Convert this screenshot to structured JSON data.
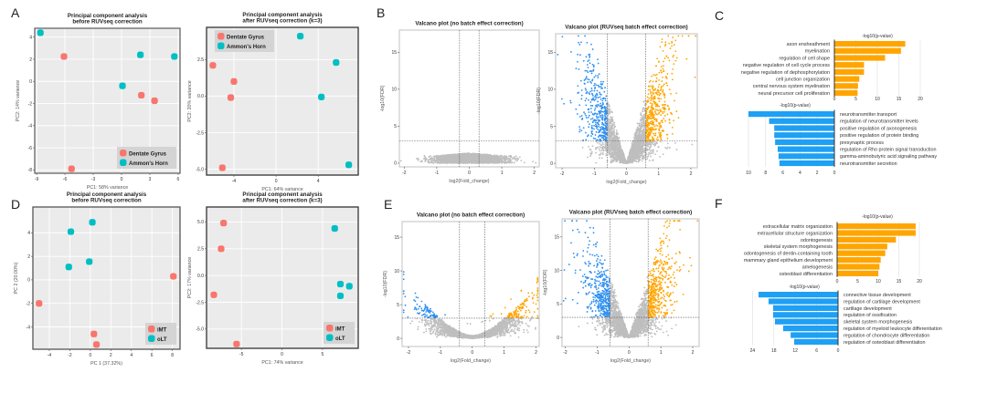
{
  "panel_labels": [
    "A",
    "B",
    "C",
    "D",
    "E",
    "F"
  ],
  "colors": {
    "dentate_gyrus": "#F8766D",
    "ammons_horn": "#00BFC4",
    "down": "#2E8FF0",
    "up": "#FFA500",
    "not_significant": "#BEBEBE",
    "pca_background": "#EBEBEB"
  },
  "chart_data": [
    {
      "type": "scatter",
      "title_lines": [
        "Principal component analysis",
        "before RUVseq correction"
      ],
      "xlabel": "PC1: 58% variance",
      "ylabel": "PC2: 14% variance",
      "xlim": [
        -9.2,
        6.2
      ],
      "ylim": [
        -8.3,
        4.8
      ],
      "xticks": [
        -9,
        -6,
        -3,
        0,
        3,
        6
      ],
      "xtick_labels": [
        "-9",
        "-6",
        "-3",
        "0",
        "3",
        "6"
      ],
      "yticks": [
        4,
        2,
        0,
        -2,
        -4,
        -6,
        -8
      ],
      "ytick_labels": [
        "4",
        "2",
        "0",
        "-2",
        "-4",
        "-6",
        "-8"
      ],
      "grid": true,
      "legend": "bottom-right",
      "series": [
        {
          "name": "Dentate Gyrus",
          "color": "#F8766D",
          "points": [
            [
              -6.1,
              2.25
            ],
            [
              2.1,
              -1.25
            ],
            [
              3.5,
              -1.75
            ],
            [
              -5.3,
              -7.9
            ]
          ]
        },
        {
          "name": "Ammon's Horn",
          "color": "#00BFC4",
          "points": [
            [
              -8.6,
              4.4
            ],
            [
              2.0,
              2.4
            ],
            [
              5.6,
              2.25
            ],
            [
              0.1,
              -0.4
            ]
          ]
        }
      ]
    },
    {
      "type": "scatter",
      "title_lines": [
        "Principal component analysis",
        "after RUVseq correction (k=3)"
      ],
      "xlabel": "PC1: 64% variance",
      "ylabel": "PC2: 20% variance",
      "xlim": [
        -6.6,
        7.8
      ],
      "ylim": [
        -5.4,
        4.7
      ],
      "xticks": [
        -4,
        0,
        4
      ],
      "xtick_labels": [
        "-4",
        "0",
        "4"
      ],
      "yticks": [
        2.5,
        0,
        -2.5,
        -5
      ],
      "ytick_labels": [
        "2.5",
        "0.0",
        "-2.5",
        "-5.0"
      ],
      "grid": true,
      "legend": "top-left",
      "series": [
        {
          "name": "Dentate Gyrus",
          "color": "#F8766D",
          "points": [
            [
              -6.0,
              2.1
            ],
            [
              -4.0,
              1.0
            ],
            [
              -4.3,
              -0.1
            ],
            [
              -5.1,
              -4.9
            ]
          ]
        },
        {
          "name": "Ammon's Horn",
          "color": "#00BFC4",
          "points": [
            [
              2.3,
              4.1
            ],
            [
              5.7,
              2.3
            ],
            [
              4.3,
              -0.06
            ],
            [
              6.9,
              -4.7
            ]
          ]
        }
      ]
    },
    {
      "type": "scatter",
      "subtype": "volcano",
      "title_lines": [
        "Valcano plot (no batch effect correction)"
      ],
      "xlabel": "log2(Fold_change)",
      "ylabel": "-log10(FDR)",
      "xlim": [
        -2.15,
        2.15
      ],
      "ylim": [
        -0.5,
        18
      ],
      "xticks": [
        -2,
        -1,
        0,
        1,
        2
      ],
      "xtick_labels": [
        "-2",
        "-1",
        "0",
        "1",
        "2"
      ],
      "yticks": [
        0,
        5,
        10,
        15
      ],
      "ytick_labels": [
        "0",
        "5",
        "10",
        "15"
      ],
      "fc_threshold": 0.3,
      "fdr_threshold": 3,
      "pattern": "flat"
    },
    {
      "type": "scatter",
      "subtype": "volcano",
      "title_lines": [
        "Valcano plot (RUVseq batch effect correction)"
      ],
      "xlabel": "log2(Fold_change)",
      "ylabel": "-log10(FDR)",
      "xlim": [
        -2.2,
        2.2
      ],
      "ylim": [
        -0.6,
        17.5
      ],
      "xticks": [
        -2,
        -1,
        0,
        1,
        2
      ],
      "xtick_labels": [
        "-2",
        "-1",
        "0",
        "1",
        "2"
      ],
      "yticks": [
        0,
        5,
        10,
        15
      ],
      "ytick_labels": [
        "0",
        "5",
        "10",
        "15"
      ],
      "fc_threshold": 0.6,
      "fdr_threshold": 3,
      "pattern": "corrected"
    },
    {
      "type": "bar",
      "orientation": "horizontal",
      "direction": "right",
      "xlabel": "-log10(p-value)",
      "xlim": [
        0,
        20
      ],
      "xticks": [
        0,
        5,
        10,
        15,
        20
      ],
      "xtick_labels": [
        "0",
        "5",
        "10",
        "15",
        "20"
      ],
      "color": "#FFA500",
      "categories": [
        "axon ensheathment",
        "myelination",
        "regulation of cell shape",
        "negative regulation of cell cycle process",
        "negative regulation of dephosphorylation",
        "cell junction organization",
        "central nervous system myelination",
        "neural precursor cell proliferation"
      ],
      "values": [
        16.5,
        15.5,
        11.8,
        6.9,
        6.9,
        5.8,
        5.5,
        5.4
      ]
    },
    {
      "type": "bar",
      "orientation": "horizontal",
      "direction": "left",
      "xlabel": "-log10(p-value)",
      "xlim": [
        0,
        10
      ],
      "xticks": [
        10,
        8,
        6,
        4,
        2,
        0
      ],
      "xtick_labels": [
        "10",
        "8",
        "6",
        "4",
        "2",
        "0"
      ],
      "color": "#1EA0F5",
      "categories": [
        "neurotransmitter transport",
        "regulation of neurotransmitter levels",
        "positive regulation of axonogenesis",
        "positive regulation of protein binding",
        "presynaptic process",
        "regulation of Rho protein signal transduction",
        "gamma-aminobutyric acid signaling pathway",
        "neurotransmitter secretion"
      ],
      "values": [
        10,
        7.6,
        7.0,
        7.0,
        6.9,
        6.6,
        6.5,
        6.4
      ]
    },
    {
      "type": "scatter",
      "title_lines": [
        "Principal component analysis",
        "before RUVseq correction"
      ],
      "xlabel": "PC 1 (37.32%)",
      "ylabel": "PC 2 (20.00%)",
      "xlim": [
        -5.6,
        8.75
      ],
      "ylim": [
        -5.9,
        6.2
      ],
      "xticks": [
        -4,
        -2,
        0,
        2,
        4,
        6,
        8
      ],
      "xtick_labels": [
        "-4",
        "-2",
        "0",
        "2",
        "4",
        "6",
        "8"
      ],
      "yticks": [
        4,
        2,
        0,
        -2,
        -4
      ],
      "ytick_labels": [
        "4",
        "2",
        "0",
        "-2",
        "-4"
      ],
      "grid": true,
      "legend": "bottom-right",
      "series": [
        {
          "name": "iMT",
          "color": "#F8766D",
          "points": [
            [
              8.1,
              0.3
            ],
            [
              -5.0,
              -2.0
            ],
            [
              0.35,
              -4.6
            ],
            [
              0.6,
              -5.5
            ]
          ]
        },
        {
          "name": "oLT",
          "color": "#00BFC4",
          "points": [
            [
              0.2,
              4.9
            ],
            [
              -1.9,
              4.1
            ],
            [
              -0.1,
              1.55
            ],
            [
              -2.1,
              1.1
            ]
          ]
        }
      ]
    },
    {
      "type": "scatter",
      "title_lines": [
        "Principal component analysis",
        "after RUVseq correction (k=3)"
      ],
      "xlabel": "PC1: 74% variance",
      "ylabel": "PC2: 17% variance",
      "xlim": [
        -9.3,
        9.4
      ],
      "ylim": [
        -6.8,
        6.4
      ],
      "xticks": [
        -5,
        0,
        5
      ],
      "xtick_labels": [
        "-5",
        "0",
        "5"
      ],
      "yticks": [
        5,
        2.5,
        0,
        -2.5,
        -5
      ],
      "ytick_labels": [
        "5.0",
        "2.5",
        "0.0",
        "-2.5",
        "-5.0"
      ],
      "grid": true,
      "legend": "bottom-right",
      "series": [
        {
          "name": "iMT",
          "color": "#F8766D",
          "points": [
            [
              -7.2,
              4.9
            ],
            [
              -7.5,
              2.5
            ],
            [
              -8.4,
              -1.8
            ],
            [
              -5.6,
              -6.4
            ]
          ]
        },
        {
          "name": "oLT",
          "color": "#00BFC4",
          "points": [
            [
              6.5,
              4.4
            ],
            [
              7.2,
              -0.8
            ],
            [
              8.3,
              -1.0
            ],
            [
              7.2,
              -1.9
            ]
          ]
        }
      ]
    },
    {
      "type": "scatter",
      "subtype": "volcano",
      "title_lines": [
        "Valcano plot (no batch effect correction)"
      ],
      "xlabel": "log2(Fold_change)",
      "ylabel": "-log10(FDR)",
      "xlim": [
        -2.2,
        2.1
      ],
      "ylim": [
        -1.2,
        17.3
      ],
      "xticks": [
        -2,
        -1,
        0,
        1,
        2
      ],
      "xtick_labels": [
        "-2",
        "-1",
        "0",
        "1",
        "2"
      ],
      "yticks": [
        0,
        5,
        10,
        15
      ],
      "ytick_labels": [
        "0",
        "5",
        "10",
        "15"
      ],
      "fc_threshold": 0.4,
      "fdr_threshold": 3,
      "pattern": "weak"
    },
    {
      "type": "scatter",
      "subtype": "volcano",
      "title_lines": [
        "Valcano plot (RUVseq batch effect correction)"
      ],
      "xlabel": "log2(Fold_change)",
      "ylabel": "-log10(FDR)",
      "xlim": [
        -2.1,
        2.2
      ],
      "ylim": [
        -1.35,
        17.7
      ],
      "xticks": [
        -2,
        -1,
        0,
        1,
        2
      ],
      "xtick_labels": [
        "-2",
        "-1",
        "0",
        "1",
        "2"
      ],
      "yticks": [
        0,
        5,
        10,
        15
      ],
      "ytick_labels": [
        "0",
        "5",
        "10",
        "15"
      ],
      "fc_threshold": 0.6,
      "fdr_threshold": 3,
      "pattern": "corrected"
    },
    {
      "type": "bar",
      "orientation": "horizontal",
      "direction": "right",
      "xlabel": "-log10(p-value)",
      "xlim": [
        0,
        20
      ],
      "xticks": [
        0,
        5,
        10,
        15,
        20
      ],
      "xtick_labels": [
        "0",
        "5",
        "10",
        "15",
        "20"
      ],
      "color": "#FFA500",
      "categories": [
        "extracellular matrix organization",
        "extracellular structure organization",
        "odontogenesis",
        "skeletal system morphogenesis",
        "odontogenesis of dentin-containing tooth",
        "mammary gland epithelium development",
        "amelogenesis",
        "osteoblast differentiation"
      ],
      "values": [
        19.1,
        19.1,
        14.3,
        12.2,
        11.7,
        10.6,
        10.3,
        10.0
      ]
    },
    {
      "type": "bar",
      "orientation": "horizontal",
      "direction": "left",
      "xlabel": "-log10(p-value)",
      "xlim": [
        0,
        24
      ],
      "xticks": [
        24,
        18,
        12,
        6,
        0
      ],
      "xtick_labels": [
        "24",
        "18",
        "12",
        "6",
        "0"
      ],
      "color": "#1EA0F5",
      "categories": [
        "connective tissue development",
        "regulation of cartilage development",
        "cartilage development",
        "regulation of ossification",
        "skeletal system morphogenesis",
        "regulation of myeloid leukocyte differentiation",
        "regulation of chondrocyte differentiation",
        "regulation of osteoblast differentiation"
      ],
      "values": [
        22.3,
        19.5,
        18.2,
        18.2,
        17.7,
        15.4,
        13.3,
        12.3
      ]
    }
  ]
}
